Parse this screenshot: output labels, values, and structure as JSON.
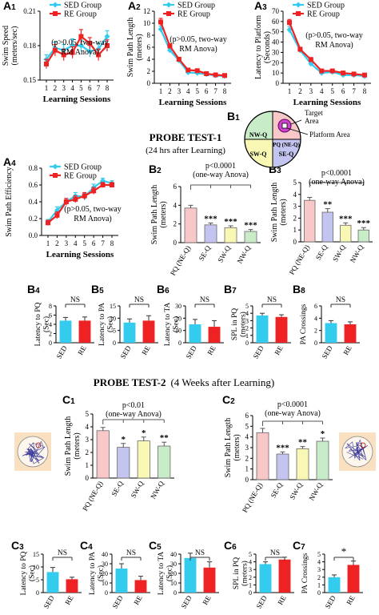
{
  "sections": {
    "probe1_title": "PROBE TEST-1",
    "probe1_sub": "(24 hrs after Learning)",
    "probe2_title": "PROBE TEST-2",
    "probe2_sub": "(4 Weeks after Learning)"
  },
  "colors": {
    "sed": "#33ccee",
    "re": "#ee2222",
    "pq": "#f8c8c8",
    "seq": "#c4c4f0",
    "swq": "#f8f8b4",
    "nwq": "#c8ecc8",
    "pool": "#f8e0c0"
  },
  "pool_diagram": {
    "panel": "B1",
    "quadrants": [
      "NW-Q",
      "PQ (NE-Q)",
      "SW-Q",
      "SE-Q"
    ],
    "target_label": "Target Area",
    "platform_label": "Platform Area"
  },
  "chart_data": [
    {
      "panel": "A1",
      "type": "line",
      "ylabel": "Swim Speed (meters/sec)",
      "xlabel": "Learning Sessions",
      "x": [
        1,
        2,
        3,
        4,
        5,
        6,
        7,
        8
      ],
      "ylim": [
        0.15,
        0.21
      ],
      "yticks": [
        0.15,
        0.18,
        0.21
      ],
      "legend": [
        "SED Group",
        "RE Group"
      ],
      "annotation": [
        "(p>0.05, two-way",
        "RM Anova)"
      ],
      "series": [
        {
          "name": "SED Group",
          "values": [
            0.168,
            0.178,
            0.176,
            0.18,
            0.18,
            0.175,
            0.177,
            0.188
          ],
          "err": [
            0.004,
            0.005,
            0.005,
            0.006,
            0.005,
            0.005,
            0.005,
            0.005
          ]
        },
        {
          "name": "RE Group",
          "values": [
            0.164,
            0.176,
            0.172,
            0.174,
            0.188,
            0.182,
            0.172,
            0.18
          ],
          "err": [
            0.004,
            0.005,
            0.005,
            0.005,
            0.006,
            0.005,
            0.005,
            0.005
          ]
        }
      ]
    },
    {
      "panel": "A2",
      "type": "line",
      "ylabel": "Swim Path Length (meters)",
      "xlabel": "Learning Sessions",
      "x": [
        1,
        2,
        3,
        4,
        5,
        6,
        7,
        8
      ],
      "ylim": [
        0,
        12
      ],
      "yticks": [
        0,
        2,
        4,
        6,
        8,
        10,
        12
      ],
      "legend": [
        "SED Group",
        "RE Group"
      ],
      "annotation": [
        "(p>0.05, two-way",
        "RM Anova)"
      ],
      "series": [
        {
          "name": "SED Group",
          "values": [
            9.0,
            5.5,
            3.8,
            1.8,
            1.7,
            1.5,
            1.3,
            1.2
          ],
          "err": [
            0.5,
            0.4,
            0.3,
            0.2,
            0.2,
            0.2,
            0.1,
            0.1
          ]
        },
        {
          "name": "RE Group",
          "values": [
            10.2,
            6.2,
            4.0,
            2.2,
            2.1,
            1.6,
            1.4,
            1.3
          ],
          "err": [
            0.6,
            0.4,
            0.3,
            0.2,
            0.2,
            0.2,
            0.1,
            0.1
          ]
        }
      ]
    },
    {
      "panel": "A3",
      "type": "line",
      "ylabel": "Latency to Platform (Seconds)",
      "xlabel": "Learning Sessions",
      "x": [
        1,
        2,
        3,
        4,
        5,
        6,
        7,
        8
      ],
      "ylim": [
        0,
        70
      ],
      "yticks": [
        0,
        10,
        20,
        30,
        40,
        50,
        60,
        70
      ],
      "legend": [
        "SED Group",
        "RE Group"
      ],
      "annotation": [
        "(p>0.05, two-way",
        "RM Anova)"
      ],
      "series": [
        {
          "name": "SED Group",
          "values": [
            52,
            32,
            19,
            10,
            11,
            8,
            8,
            7
          ],
          "err": [
            3,
            2,
            2,
            1.5,
            1.5,
            1,
            1,
            1
          ]
        },
        {
          "name": "RE Group",
          "values": [
            59,
            33,
            23,
            12,
            12,
            10,
            9,
            8
          ],
          "err": [
            3,
            2,
            2,
            1.5,
            1.5,
            1,
            1,
            1
          ]
        }
      ]
    },
    {
      "panel": "A4",
      "type": "line",
      "ylabel": "Swim Path Efficiency",
      "xlabel": "Learning Sessions",
      "x": [
        1,
        2,
        3,
        4,
        5,
        6,
        7,
        8
      ],
      "ylim": [
        0.0,
        0.8
      ],
      "yticks": [
        0.0,
        0.2,
        0.4,
        0.6,
        0.8
      ],
      "legend": [
        "SED Group",
        "RE Group"
      ],
      "annotation": [
        "(p>0.05, two-way",
        "RM Anova)"
      ],
      "series": [
        {
          "name": "SED Group",
          "values": [
            0.16,
            0.3,
            0.4,
            0.47,
            0.46,
            0.57,
            0.65,
            0.62
          ],
          "err": [
            0.03,
            0.04,
            0.04,
            0.04,
            0.04,
            0.04,
            0.03,
            0.03
          ]
        },
        {
          "name": "RE Group",
          "values": [
            0.15,
            0.24,
            0.4,
            0.43,
            0.47,
            0.53,
            0.6,
            0.6
          ],
          "err": [
            0.03,
            0.04,
            0.04,
            0.04,
            0.04,
            0.04,
            0.03,
            0.03
          ]
        }
      ]
    },
    {
      "panel": "B2",
      "type": "bar",
      "ylabel": "Swim Path Length (meters)",
      "categories": [
        "PQ (NE-Q)",
        "SE-Q",
        "SW-Q",
        "NW-Q"
      ],
      "ylim": [
        0,
        6
      ],
      "yticks": [
        0,
        2,
        4,
        6
      ],
      "values": [
        3.7,
        1.9,
        1.6,
        1.2
      ],
      "err": [
        0.3,
        0.2,
        0.2,
        0.2
      ],
      "sig": [
        "",
        "***",
        "***",
        "***"
      ],
      "stat": [
        "p<0.0001",
        "(one-way Anova)"
      ]
    },
    {
      "panel": "B3",
      "type": "bar",
      "ylabel": "Swim Path Length (meters)",
      "categories": [
        "PQ (NE-Q)",
        "SE-Q",
        "SW-Q",
        "NW-Q"
      ],
      "ylim": [
        0,
        5
      ],
      "yticks": [
        0,
        1,
        2,
        3,
        4,
        5
      ],
      "values": [
        3.5,
        2.5,
        1.4,
        1.0
      ],
      "err": [
        0.25,
        0.3,
        0.2,
        0.2
      ],
      "sig": [
        "",
        "**",
        "***",
        "***"
      ],
      "stat": [
        "p<0.0001",
        "(one-way Anova)"
      ]
    },
    {
      "panel": "B4",
      "type": "bar",
      "ylabel": "Latency to PQ (Sec)",
      "categories": [
        "SED",
        "RE"
      ],
      "ylim": [
        0,
        8
      ],
      "yticks": [
        0,
        2,
        4,
        6,
        8
      ],
      "values": [
        4.8,
        4.8
      ],
      "err": [
        0.7,
        0.8
      ],
      "compare": "NS"
    },
    {
      "panel": "B5",
      "type": "bar",
      "ylabel": "Latency to PA (Sec)",
      "categories": [
        "SED",
        "RE"
      ],
      "ylim": [
        0,
        15
      ],
      "yticks": [
        0,
        5,
        10,
        15
      ],
      "values": [
        8.2,
        9.0
      ],
      "err": [
        1.5,
        2.0
      ],
      "compare": "NS"
    },
    {
      "panel": "B6",
      "type": "bar",
      "ylabel": "Latency to TA (Sec)",
      "categories": [
        "SED",
        "RE"
      ],
      "ylim": [
        0,
        30
      ],
      "yticks": [
        0,
        10,
        20,
        30
      ],
      "values": [
        15,
        13
      ],
      "err": [
        4,
        5
      ],
      "compare": "NS"
    },
    {
      "panel": "B7",
      "type": "bar",
      "ylabel": "SPL in PQ (meters)",
      "categories": [
        "SED",
        "RE"
      ],
      "ylim": [
        0,
        5
      ],
      "yticks": [
        0,
        1,
        2,
        3,
        4,
        5
      ],
      "values": [
        3.7,
        3.5
      ],
      "err": [
        0.3,
        0.3
      ],
      "compare": "NS"
    },
    {
      "panel": "B8",
      "type": "bar",
      "ylabel": "PA Crossings",
      "categories": [
        "SED",
        "RE"
      ],
      "ylim": [
        0,
        6
      ],
      "yticks": [
        0,
        2,
        4,
        6
      ],
      "values": [
        3.2,
        3.0
      ],
      "err": [
        0.4,
        0.4
      ],
      "compare": "NS"
    },
    {
      "panel": "C1",
      "type": "bar",
      "ylabel": "Swim Path Length (meters)",
      "categories": [
        "PQ (NE-Q)",
        "SE-Q",
        "SW-Q",
        "NW-Q"
      ],
      "ylim": [
        0,
        5
      ],
      "yticks": [
        0,
        1,
        2,
        3,
        4,
        5
      ],
      "values": [
        3.7,
        2.4,
        2.9,
        2.5
      ],
      "err": [
        0.25,
        0.3,
        0.3,
        0.3
      ],
      "sig": [
        "",
        "*",
        "*",
        "**"
      ],
      "stat": [
        "p<0.01",
        "(one-way Anova)"
      ]
    },
    {
      "panel": "C2",
      "type": "bar",
      "ylabel": "Swim Path Length (meters)",
      "categories": [
        "PQ (NE-Q)",
        "SE-Q",
        "SW-Q",
        "NW-Q"
      ],
      "ylim": [
        0,
        6
      ],
      "yticks": [
        0,
        1,
        2,
        3,
        4,
        5,
        6
      ],
      "values": [
        4.4,
        2.4,
        2.9,
        3.6
      ],
      "err": [
        0.4,
        0.2,
        0.2,
        0.3
      ],
      "sig": [
        "",
        "***",
        "**",
        "*"
      ],
      "stat": [
        "p<0.0001",
        "(one-way Anova)"
      ]
    },
    {
      "panel": "C3",
      "type": "bar",
      "ylabel": "Latency to PQ (Sec)",
      "categories": [
        "SED",
        "RE"
      ],
      "ylim": [
        0,
        15
      ],
      "yticks": [
        0,
        5,
        10,
        15
      ],
      "values": [
        8.0,
        5.2
      ],
      "err": [
        1.8,
        0.8
      ],
      "compare": "NS"
    },
    {
      "panel": "C4",
      "type": "bar",
      "ylabel": "Latency to PA (Sec)",
      "categories": [
        "SED",
        "RE"
      ],
      "ylim": [
        0,
        40
      ],
      "yticks": [
        0,
        10,
        20,
        30,
        40
      ],
      "values": [
        25,
        13
      ],
      "err": [
        5,
        4
      ],
      "compare": "NS"
    },
    {
      "panel": "C5",
      "type": "bar",
      "ylabel": "Latency to TA (Sec)",
      "categories": [
        "SED",
        "RE"
      ],
      "ylim": [
        0,
        40
      ],
      "yticks": [
        0,
        10,
        20,
        30,
        40
      ],
      "values": [
        36,
        26
      ],
      "err": [
        5,
        6
      ],
      "compare": "NS"
    },
    {
      "panel": "C6",
      "type": "bar",
      "ylabel": "SPL in PQ (meters)",
      "categories": [
        "SED",
        "RE"
      ],
      "ylim": [
        0,
        5
      ],
      "yticks": [
        0,
        1,
        2,
        3,
        4,
        5
      ],
      "values": [
        3.7,
        4.3
      ],
      "err": [
        0.3,
        0.3
      ],
      "compare": "NS"
    },
    {
      "panel": "C7",
      "type": "bar",
      "ylabel": "PA Crossings",
      "categories": [
        "SED",
        "RE"
      ],
      "ylim": [
        0,
        5
      ],
      "yticks": [
        0,
        1,
        2,
        3,
        4,
        5
      ],
      "values": [
        2.0,
        3.6
      ],
      "err": [
        0.3,
        0.5
      ],
      "compare": "*"
    }
  ]
}
